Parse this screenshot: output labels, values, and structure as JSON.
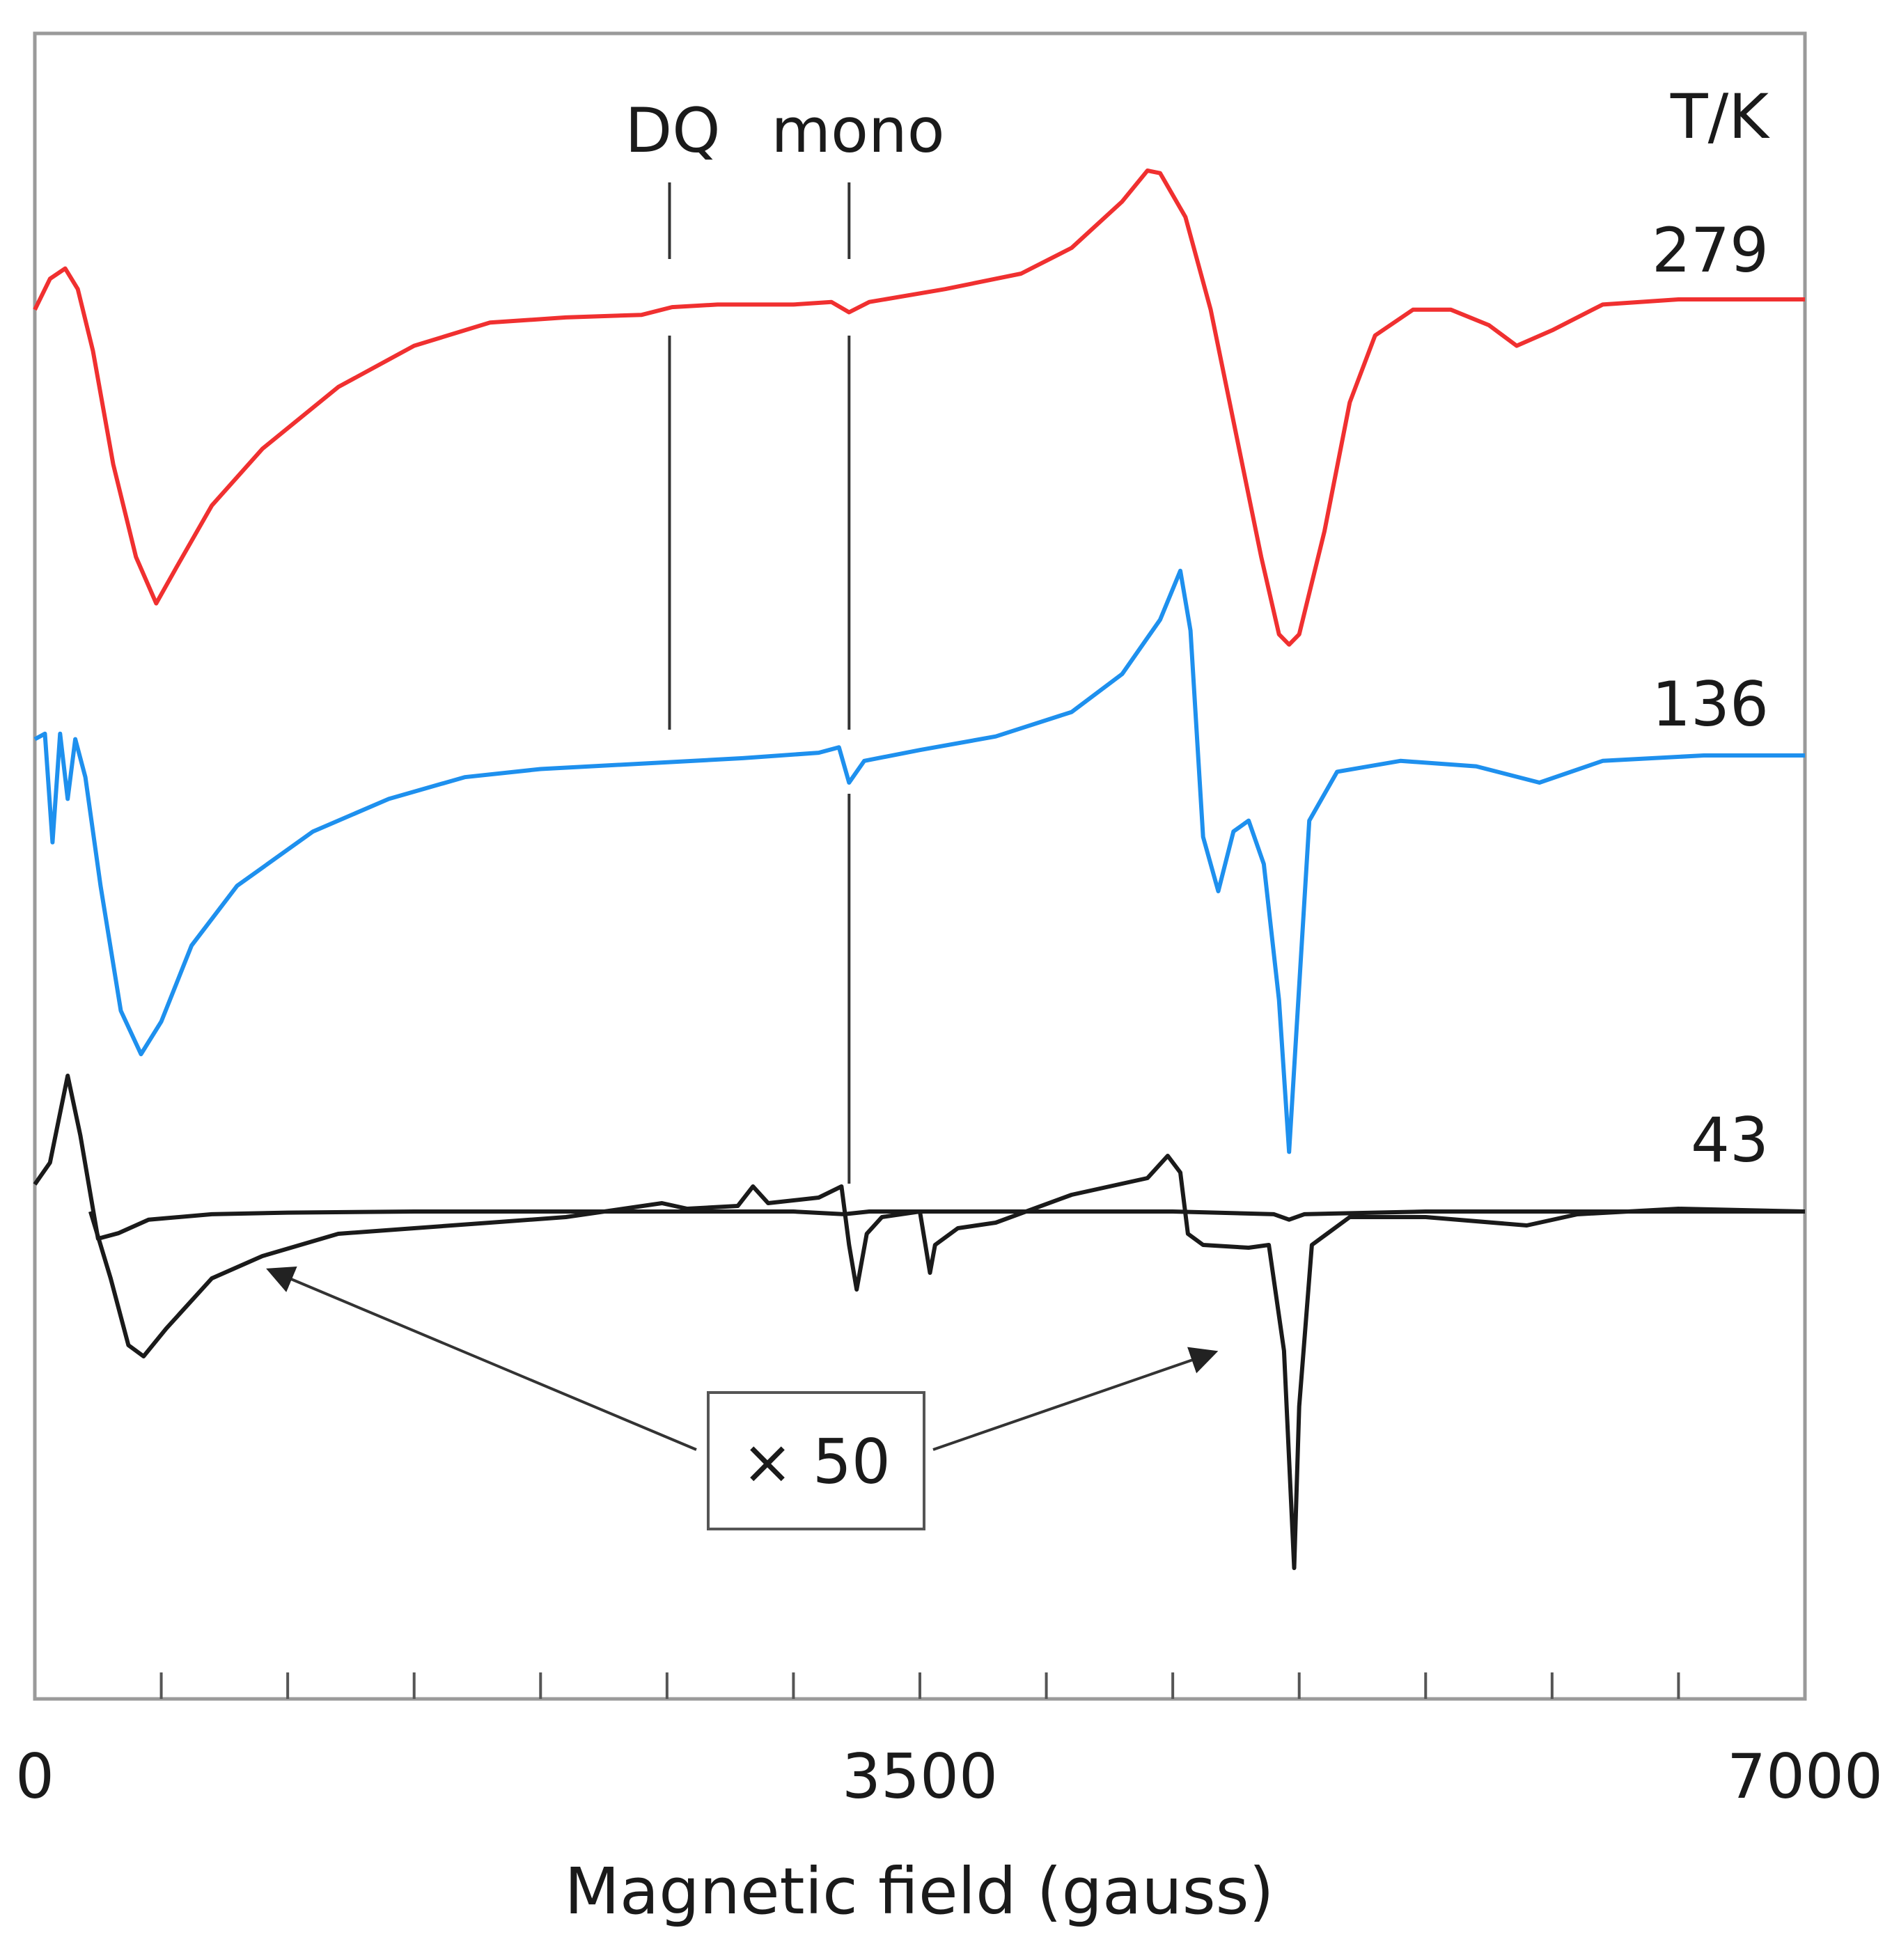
{
  "chart_data": {
    "type": "line",
    "title": "",
    "xlabel": "Magnetic field (gauss)",
    "ylabel": "",
    "xlim": [
      0,
      7000
    ],
    "x_tick_labels": [
      "0",
      "3500",
      "7000"
    ],
    "x_tick_values": [
      0,
      3500,
      7000
    ],
    "minor_tick_values": [
      500,
      1000,
      1500,
      2000,
      2500,
      3000,
      3500,
      4000,
      4500,
      5000,
      5500,
      6000,
      6500
    ],
    "grid": false,
    "legend_title": "T/K",
    "annotations": {
      "dq_label": "DQ",
      "dq_field": 2510,
      "mono_label": "mono",
      "mono_field": 3220,
      "scale_label": "× 50",
      "scale_arrow_targets": [
        1100,
        4700
      ]
    },
    "series": [
      {
        "name": "279",
        "color": "#f03030",
        "points": [
          [
            0,
            -0.2
          ],
          [
            60,
            0.4
          ],
          [
            120,
            0.6
          ],
          [
            170,
            0.2
          ],
          [
            230,
            -1.0
          ],
          [
            310,
            -3.2
          ],
          [
            400,
            -5.0
          ],
          [
            480,
            -5.9
          ],
          [
            560,
            -5.2
          ],
          [
            700,
            -4.0
          ],
          [
            900,
            -2.9
          ],
          [
            1200,
            -1.7
          ],
          [
            1500,
            -0.9
          ],
          [
            1800,
            -0.45
          ],
          [
            2100,
            -0.35
          ],
          [
            2400,
            -0.3
          ],
          [
            2520,
            -0.15
          ],
          [
            2700,
            -0.1
          ],
          [
            3000,
            -0.1
          ],
          [
            3150,
            -0.05
          ],
          [
            3220,
            -0.25
          ],
          [
            3300,
            -0.05
          ],
          [
            3600,
            0.2
          ],
          [
            3900,
            0.5
          ],
          [
            4100,
            1.0
          ],
          [
            4300,
            1.9
          ],
          [
            4400,
            2.5
          ],
          [
            4450,
            2.45
          ],
          [
            4550,
            1.6
          ],
          [
            4650,
            -0.2
          ],
          [
            4750,
            -2.6
          ],
          [
            4850,
            -5.0
          ],
          [
            4920,
            -6.5
          ],
          [
            4960,
            -6.7
          ],
          [
            5000,
            -6.5
          ],
          [
            5100,
            -4.5
          ],
          [
            5200,
            -2.0
          ],
          [
            5300,
            -0.7
          ],
          [
            5450,
            -0.2
          ],
          [
            5600,
            -0.2
          ],
          [
            5750,
            -0.5
          ],
          [
            5860,
            -0.9
          ],
          [
            6000,
            -0.6
          ],
          [
            6200,
            -0.1
          ],
          [
            6500,
            0.0
          ],
          [
            7000,
            0.0
          ]
        ]
      },
      {
        "name": "136",
        "color": "#1e90ee",
        "points": [
          [
            0,
            0.3
          ],
          [
            40,
            0.4
          ],
          [
            70,
            -1.6
          ],
          [
            100,
            0.4
          ],
          [
            130,
            -0.8
          ],
          [
            160,
            0.3
          ],
          [
            200,
            -0.4
          ],
          [
            260,
            -2.4
          ],
          [
            340,
            -4.7
          ],
          [
            420,
            -5.5
          ],
          [
            500,
            -4.9
          ],
          [
            620,
            -3.5
          ],
          [
            800,
            -2.4
          ],
          [
            1100,
            -1.4
          ],
          [
            1400,
            -0.8
          ],
          [
            1700,
            -0.4
          ],
          [
            2000,
            -0.25
          ],
          [
            2400,
            -0.15
          ],
          [
            2800,
            -0.05
          ],
          [
            3100,
            0.05
          ],
          [
            3180,
            0.15
          ],
          [
            3220,
            -0.5
          ],
          [
            3280,
            -0.1
          ],
          [
            3500,
            0.1
          ],
          [
            3800,
            0.35
          ],
          [
            4100,
            0.8
          ],
          [
            4300,
            1.5
          ],
          [
            4450,
            2.5
          ],
          [
            4530,
            3.4
          ],
          [
            4570,
            2.3
          ],
          [
            4620,
            -1.5
          ],
          [
            4680,
            -2.5
          ],
          [
            4740,
            -1.4
          ],
          [
            4800,
            -1.2
          ],
          [
            4860,
            -2.0
          ],
          [
            4920,
            -4.5
          ],
          [
            4960,
            -7.3
          ],
          [
            4990,
            -5.0
          ],
          [
            5040,
            -1.2
          ],
          [
            5150,
            -0.3
          ],
          [
            5400,
            -0.1
          ],
          [
            5700,
            -0.2
          ],
          [
            5950,
            -0.5
          ],
          [
            6200,
            -0.1
          ],
          [
            6600,
            0.0
          ],
          [
            7000,
            0.0
          ]
        ]
      },
      {
        "name": "43",
        "color": "#1a1a1a",
        "points": [
          [
            0,
            0.5
          ],
          [
            60,
            0.9
          ],
          [
            130,
            2.5
          ],
          [
            180,
            1.4
          ],
          [
            250,
            -0.5
          ],
          [
            330,
            -0.4
          ],
          [
            450,
            -0.15
          ],
          [
            700,
            -0.05
          ],
          [
            1000,
            -0.02
          ],
          [
            1500,
            0.0
          ],
          [
            2000,
            0.0
          ],
          [
            2500,
            0.0
          ],
          [
            3000,
            0.0
          ],
          [
            3200,
            -0.05
          ],
          [
            3300,
            0.0
          ],
          [
            4000,
            0.0
          ],
          [
            4500,
            0.0
          ],
          [
            4900,
            -0.05
          ],
          [
            4960,
            -0.15
          ],
          [
            5020,
            -0.05
          ],
          [
            5500,
            0.0
          ],
          [
            7000,
            0.0
          ]
        ]
      },
      {
        "name": "43 (×50)",
        "color": "#1a1a1a",
        "points": [
          [
            220,
            0.0
          ],
          [
            300,
            -1.2
          ],
          [
            370,
            -2.4
          ],
          [
            430,
            -2.6
          ],
          [
            520,
            -2.1
          ],
          [
            700,
            -1.2
          ],
          [
            900,
            -0.8
          ],
          [
            1200,
            -0.4
          ],
          [
            1500,
            -0.3
          ],
          [
            1800,
            -0.2
          ],
          [
            2100,
            -0.1
          ],
          [
            2480,
            0.15
          ],
          [
            2580,
            0.05
          ],
          [
            2780,
            0.1
          ],
          [
            2840,
            0.45
          ],
          [
            2900,
            0.15
          ],
          [
            3100,
            0.25
          ],
          [
            3190,
            0.45
          ],
          [
            3220,
            -0.6
          ],
          [
            3250,
            -1.4
          ],
          [
            3290,
            -0.4
          ],
          [
            3350,
            -0.1
          ],
          [
            3500,
            0.0
          ],
          [
            3540,
            -1.1
          ],
          [
            3560,
            -0.6
          ],
          [
            3650,
            -0.3
          ],
          [
            3800,
            -0.2
          ],
          [
            4100,
            0.3
          ],
          [
            4400,
            0.6
          ],
          [
            4480,
            1.0
          ],
          [
            4530,
            0.7
          ],
          [
            4560,
            -0.4
          ],
          [
            4620,
            -0.6
          ],
          [
            4800,
            -0.65
          ],
          [
            4880,
            -0.6
          ],
          [
            4940,
            -2.5
          ],
          [
            4980,
            -6.4
          ],
          [
            5000,
            -3.5
          ],
          [
            5050,
            -0.6
          ],
          [
            5200,
            -0.1
          ],
          [
            5500,
            -0.1
          ],
          [
            5900,
            -0.25
          ],
          [
            6100,
            -0.05
          ],
          [
            6500,
            0.05
          ],
          [
            7000,
            0.0
          ]
        ]
      }
    ]
  }
}
